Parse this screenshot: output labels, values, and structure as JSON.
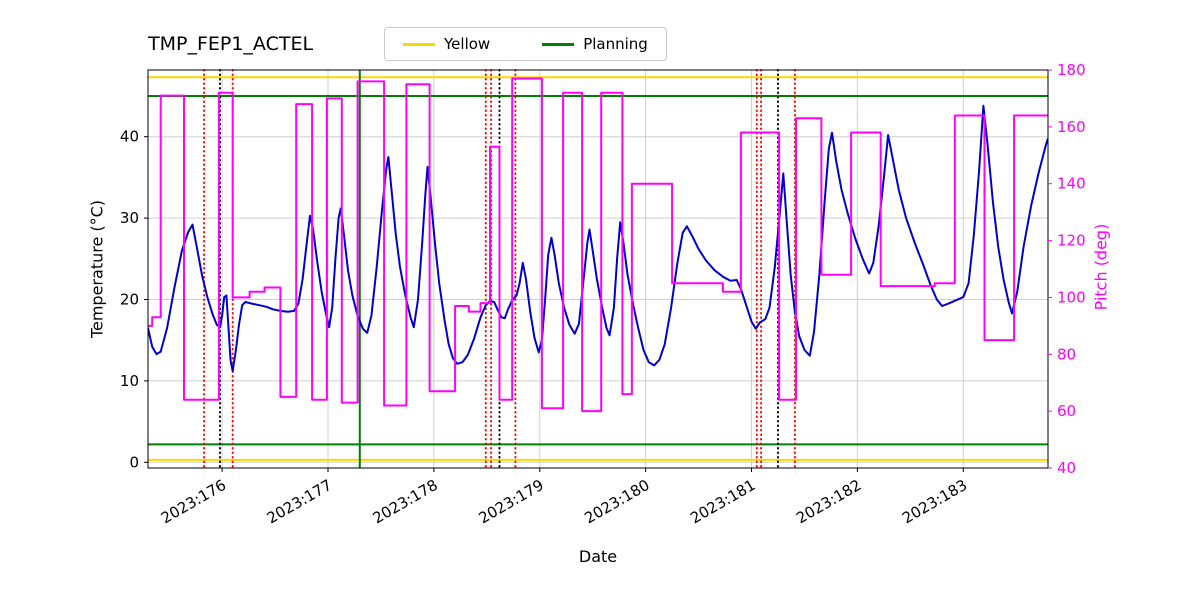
{
  "figure": {
    "title": "TMP_FEP1_ACTEL",
    "xlabel": "Date",
    "ylabel_left": "Temperature (°C)",
    "ylabel_right": "Pitch (deg)",
    "legend": [
      {
        "label": "Yellow",
        "color": "#FFD700"
      },
      {
        "label": "Planning",
        "color": "#008000"
      }
    ]
  },
  "chart_data": {
    "type": "line",
    "title": "TMP_FEP1_ACTEL",
    "xlabel": "Date",
    "grid": true,
    "grid_color": "#cfcfcf",
    "legend_position": "top-center",
    "xlim": [
      175.3,
      183.8
    ],
    "x_ticks": [
      176,
      177,
      178,
      179,
      180,
      181,
      182,
      183
    ],
    "x_tick_labels": [
      "2023:176",
      "2023:177",
      "2023:178",
      "2023:179",
      "2023:180",
      "2023:181",
      "2023:182",
      "2023:183"
    ],
    "left_axis": {
      "label": "Temperature (°C)",
      "lim": [
        -0.7,
        48.2
      ],
      "ticks": [
        0,
        10,
        20,
        30,
        40
      ]
    },
    "right_axis": {
      "label": "Pitch (deg)",
      "lim": [
        40,
        180
      ],
      "ticks": [
        40,
        60,
        80,
        100,
        120,
        140,
        160,
        180
      ],
      "color": "#FF00FF"
    },
    "hlines": [
      {
        "name": "yellow-upper-limit-line",
        "y": 47.3,
        "color": "#FFD700"
      },
      {
        "name": "planning-upper-limit-line",
        "y": 45.0,
        "color": "#008000"
      },
      {
        "name": "planning-lower-limit-line",
        "y": 2.2,
        "color": "#008000"
      },
      {
        "name": "yellow-lower-limit-line",
        "y": 0.3,
        "color": "#FFD700"
      }
    ],
    "vlines": [
      {
        "name": "red-dotted-marker-1",
        "x": 175.83,
        "color": "#FF0000",
        "style": "dotted"
      },
      {
        "name": "black-dotted-marker-1",
        "x": 175.98,
        "color": "#000000",
        "style": "dotted"
      },
      {
        "name": "red-dotted-marker-2",
        "x": 176.1,
        "color": "#FF0000",
        "style": "dotted"
      },
      {
        "name": "green-planning-marker",
        "x": 177.3,
        "color": "#008000",
        "style": "solid"
      },
      {
        "name": "red-dotted-marker-3",
        "x": 178.49,
        "color": "#FF0000",
        "style": "dotted"
      },
      {
        "name": "red-dotted-marker-4",
        "x": 178.54,
        "color": "#FF0000",
        "style": "dotted"
      },
      {
        "name": "black-dotted-marker-2",
        "x": 178.62,
        "color": "#000000",
        "style": "dotted"
      },
      {
        "name": "red-dotted-marker-5",
        "x": 178.77,
        "color": "#FF0000",
        "style": "dotted"
      },
      {
        "name": "red-dotted-marker-6",
        "x": 181.05,
        "color": "#FF0000",
        "style": "dotted"
      },
      {
        "name": "red-dotted-marker-7",
        "x": 181.09,
        "color": "#FF0000",
        "style": "dotted"
      },
      {
        "name": "black-dotted-marker-3",
        "x": 181.25,
        "color": "#000000",
        "style": "dotted"
      },
      {
        "name": "red-dotted-marker-8",
        "x": 181.41,
        "color": "#FF0000",
        "style": "dotted"
      }
    ],
    "series": [
      {
        "name": "temperature",
        "axis": "left",
        "color": "#0000D0",
        "step": false,
        "points": [
          [
            175.3,
            16.5
          ],
          [
            175.34,
            14.2
          ],
          [
            175.38,
            13.3
          ],
          [
            175.42,
            13.6
          ],
          [
            175.48,
            16.5
          ],
          [
            175.55,
            21.5
          ],
          [
            175.62,
            26
          ],
          [
            175.68,
            28.3
          ],
          [
            175.72,
            29.2
          ],
          [
            175.76,
            26.5
          ],
          [
            175.81,
            23
          ],
          [
            175.86,
            20.3
          ],
          [
            175.91,
            18.2
          ],
          [
            175.95,
            16.9
          ],
          [
            175.98,
            16.6
          ],
          [
            176.0,
            18
          ],
          [
            176.02,
            20.3
          ],
          [
            176.04,
            20.5
          ],
          [
            176.06,
            16.5
          ],
          [
            176.08,
            12.5
          ],
          [
            176.1,
            11.2
          ],
          [
            176.13,
            13.8
          ],
          [
            176.16,
            17
          ],
          [
            176.19,
            19.3
          ],
          [
            176.22,
            19.7
          ],
          [
            176.28,
            19.5
          ],
          [
            176.35,
            19.3
          ],
          [
            176.42,
            19.1
          ],
          [
            176.48,
            18.8
          ],
          [
            176.55,
            18.6
          ],
          [
            176.62,
            18.5
          ],
          [
            176.68,
            18.6
          ],
          [
            176.72,
            19.5
          ],
          [
            176.76,
            22.5
          ],
          [
            176.8,
            27
          ],
          [
            176.83,
            30.3
          ],
          [
            176.86,
            28.5
          ],
          [
            176.9,
            24.5
          ],
          [
            176.94,
            21
          ],
          [
            176.98,
            18.3
          ],
          [
            177.01,
            16.6
          ],
          [
            177.04,
            19
          ],
          [
            177.07,
            25
          ],
          [
            177.1,
            30
          ],
          [
            177.12,
            31.2
          ],
          [
            177.15,
            28
          ],
          [
            177.19,
            23.5
          ],
          [
            177.23,
            20.5
          ],
          [
            177.28,
            18
          ],
          [
            177.33,
            16.4
          ],
          [
            177.37,
            15.9
          ],
          [
            177.41,
            18
          ],
          [
            177.46,
            24
          ],
          [
            177.51,
            31
          ],
          [
            177.55,
            36
          ],
          [
            177.57,
            37.5
          ],
          [
            177.6,
            33.5
          ],
          [
            177.64,
            28
          ],
          [
            177.68,
            24
          ],
          [
            177.73,
            20.5
          ],
          [
            177.78,
            17.8
          ],
          [
            177.81,
            16.6
          ],
          [
            177.85,
            20
          ],
          [
            177.89,
            27
          ],
          [
            177.92,
            33
          ],
          [
            177.94,
            36.3
          ],
          [
            177.97,
            32.5
          ],
          [
            178.01,
            27
          ],
          [
            178.05,
            22
          ],
          [
            178.1,
            17.5
          ],
          [
            178.14,
            14.5
          ],
          [
            178.18,
            12.8
          ],
          [
            178.22,
            12.1
          ],
          [
            178.27,
            12.3
          ],
          [
            178.32,
            13.2
          ],
          [
            178.38,
            15.2
          ],
          [
            178.44,
            17.8
          ],
          [
            178.49,
            19.3
          ],
          [
            178.53,
            19.8
          ],
          [
            178.57,
            19.7
          ],
          [
            178.6,
            18.8
          ],
          [
            178.64,
            17.8
          ],
          [
            178.67,
            17.7
          ],
          [
            178.7,
            18.8
          ],
          [
            178.74,
            19.9
          ],
          [
            178.78,
            20.5
          ],
          [
            178.81,
            22
          ],
          [
            178.84,
            24.5
          ],
          [
            178.87,
            22.5
          ],
          [
            178.91,
            18.5
          ],
          [
            178.95,
            15.3
          ],
          [
            178.99,
            13.5
          ],
          [
            179.02,
            15
          ],
          [
            179.05,
            20
          ],
          [
            179.08,
            25.5
          ],
          [
            179.11,
            27.6
          ],
          [
            179.14,
            25.5
          ],
          [
            179.18,
            22
          ],
          [
            179.23,
            19
          ],
          [
            179.28,
            16.9
          ],
          [
            179.33,
            15.8
          ],
          [
            179.37,
            17
          ],
          [
            179.41,
            22
          ],
          [
            179.45,
            27
          ],
          [
            179.47,
            28.6
          ],
          [
            179.5,
            26
          ],
          [
            179.54,
            22.5
          ],
          [
            179.59,
            19
          ],
          [
            179.63,
            16.5
          ],
          [
            179.66,
            15.6
          ],
          [
            179.7,
            19
          ],
          [
            179.73,
            25
          ],
          [
            179.76,
            29.5
          ],
          [
            179.79,
            27
          ],
          [
            179.83,
            23
          ],
          [
            179.88,
            19.5
          ],
          [
            179.93,
            16.5
          ],
          [
            179.98,
            13.8
          ],
          [
            180.03,
            12.3
          ],
          [
            180.08,
            11.9
          ],
          [
            180.13,
            12.6
          ],
          [
            180.18,
            14.5
          ],
          [
            180.24,
            19
          ],
          [
            180.3,
            24.5
          ],
          [
            180.35,
            28.2
          ],
          [
            180.39,
            29
          ],
          [
            180.44,
            27.8
          ],
          [
            180.5,
            26.2
          ],
          [
            180.57,
            24.8
          ],
          [
            180.65,
            23.6
          ],
          [
            180.73,
            22.8
          ],
          [
            180.8,
            22.3
          ],
          [
            180.86,
            22.4
          ],
          [
            180.9,
            21.3
          ],
          [
            180.95,
            19.3
          ],
          [
            181.0,
            17.3
          ],
          [
            181.04,
            16.4
          ],
          [
            181.08,
            17.2
          ],
          [
            181.13,
            17.6
          ],
          [
            181.17,
            19
          ],
          [
            181.22,
            24
          ],
          [
            181.27,
            31
          ],
          [
            181.3,
            35.5
          ],
          [
            181.33,
            30
          ],
          [
            181.37,
            23
          ],
          [
            181.41,
            18.5
          ],
          [
            181.45,
            15.5
          ],
          [
            181.5,
            13.8
          ],
          [
            181.55,
            13.1
          ],
          [
            181.59,
            16
          ],
          [
            181.64,
            23
          ],
          [
            181.69,
            32
          ],
          [
            181.73,
            38.5
          ],
          [
            181.76,
            40.5
          ],
          [
            181.8,
            37
          ],
          [
            181.85,
            33.5
          ],
          [
            181.91,
            30.5
          ],
          [
            181.98,
            27.5
          ],
          [
            182.05,
            25
          ],
          [
            182.11,
            23.2
          ],
          [
            182.15,
            24.5
          ],
          [
            182.2,
            29
          ],
          [
            182.25,
            35
          ],
          [
            182.29,
            40.2
          ],
          [
            182.33,
            37.5
          ],
          [
            182.39,
            33.5
          ],
          [
            182.46,
            30
          ],
          [
            182.54,
            27
          ],
          [
            182.62,
            24.3
          ],
          [
            182.69,
            21.8
          ],
          [
            182.75,
            20
          ],
          [
            182.8,
            19.2
          ],
          [
            182.86,
            19.5
          ],
          [
            182.93,
            19.9
          ],
          [
            183.0,
            20.3
          ],
          [
            183.05,
            22
          ],
          [
            183.1,
            28
          ],
          [
            183.15,
            36
          ],
          [
            183.19,
            43.8
          ],
          [
            183.23,
            39
          ],
          [
            183.28,
            32
          ],
          [
            183.33,
            26.5
          ],
          [
            183.38,
            22.5
          ],
          [
            183.43,
            19.6
          ],
          [
            183.46,
            18.3
          ],
          [
            183.51,
            21
          ],
          [
            183.57,
            26.5
          ],
          [
            183.64,
            31.5
          ],
          [
            183.71,
            35.5
          ],
          [
            183.78,
            39
          ],
          [
            183.8,
            39.8
          ]
        ]
      },
      {
        "name": "pitch",
        "axis": "right",
        "color": "#FF00FF",
        "step": true,
        "points": [
          [
            175.3,
            90
          ],
          [
            175.34,
            93
          ],
          [
            175.42,
            171
          ],
          [
            175.64,
            64
          ],
          [
            175.97,
            172
          ],
          [
            176.1,
            100
          ],
          [
            176.26,
            102
          ],
          [
            176.4,
            103.5
          ],
          [
            176.55,
            65
          ],
          [
            176.7,
            168
          ],
          [
            176.85,
            64
          ],
          [
            176.99,
            170
          ],
          [
            177.13,
            63
          ],
          [
            177.28,
            176
          ],
          [
            177.53,
            62
          ],
          [
            177.74,
            175
          ],
          [
            177.96,
            67
          ],
          [
            178.2,
            97
          ],
          [
            178.33,
            95
          ],
          [
            178.44,
            98
          ],
          [
            178.53,
            153
          ],
          [
            178.62,
            64
          ],
          [
            178.74,
            177
          ],
          [
            179.02,
            61
          ],
          [
            179.22,
            172
          ],
          [
            179.4,
            60
          ],
          [
            179.58,
            172
          ],
          [
            179.78,
            66
          ],
          [
            179.87,
            140
          ],
          [
            180.25,
            105
          ],
          [
            180.73,
            102
          ],
          [
            180.9,
            158
          ],
          [
            181.26,
            64
          ],
          [
            181.42,
            163
          ],
          [
            181.66,
            108
          ],
          [
            181.94,
            158
          ],
          [
            182.22,
            104
          ],
          [
            182.73,
            105
          ],
          [
            182.92,
            164
          ],
          [
            183.2,
            85
          ],
          [
            183.48,
            164
          ]
        ]
      }
    ]
  }
}
